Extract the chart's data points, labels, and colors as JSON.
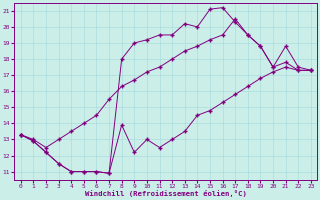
{
  "xlabel": "Windchill (Refroidissement éolien,°C)",
  "xlim": [
    -0.5,
    23.5
  ],
  "ylim": [
    10.5,
    21.5
  ],
  "xticks": [
    0,
    1,
    2,
    3,
    4,
    5,
    6,
    7,
    8,
    9,
    10,
    11,
    12,
    13,
    14,
    15,
    16,
    17,
    18,
    19,
    20,
    21,
    22,
    23
  ],
  "yticks": [
    11,
    12,
    13,
    14,
    15,
    16,
    17,
    18,
    19,
    20,
    21
  ],
  "bg_color": "#cceee8",
  "grid_color": "#aadddd",
  "line_color": "#800080",
  "line1_x": [
    0,
    1,
    2,
    3,
    4,
    5,
    6,
    7,
    8,
    9,
    10,
    11,
    12,
    13,
    14,
    15,
    16,
    17,
    18,
    19,
    20,
    21,
    22,
    23
  ],
  "line1_y": [
    13.3,
    12.9,
    12.2,
    11.5,
    11.0,
    11.0,
    11.0,
    10.9,
    13.9,
    12.2,
    13.0,
    12.5,
    13.0,
    13.5,
    14.5,
    14.8,
    15.3,
    15.8,
    16.3,
    16.8,
    17.2,
    17.5,
    17.3,
    17.3
  ],
  "line2_x": [
    0,
    1,
    2,
    3,
    4,
    5,
    6,
    7,
    8,
    9,
    10,
    11,
    12,
    13,
    14,
    15,
    16,
    17,
    18,
    19,
    20,
    21,
    22,
    23
  ],
  "line2_y": [
    13.3,
    12.9,
    12.2,
    11.5,
    11.0,
    11.0,
    11.0,
    10.9,
    18.0,
    19.0,
    19.2,
    19.5,
    19.5,
    20.2,
    20.0,
    21.1,
    21.2,
    20.3,
    19.5,
    18.8,
    17.5,
    17.8,
    17.3,
    17.3
  ],
  "line3_x": [
    0,
    1,
    2,
    3,
    4,
    5,
    6,
    7,
    8,
    9,
    10,
    11,
    12,
    13,
    14,
    15,
    16,
    17,
    18,
    19,
    20,
    21,
    22,
    23
  ],
  "line3_y": [
    13.3,
    13.0,
    12.5,
    13.0,
    13.5,
    14.0,
    14.5,
    15.5,
    16.3,
    16.7,
    17.2,
    17.5,
    18.0,
    18.5,
    18.8,
    19.2,
    19.5,
    20.5,
    19.5,
    18.8,
    17.5,
    18.8,
    17.5,
    17.3
  ],
  "marker": "+",
  "marker_size": 3,
  "lw": 0.7,
  "tick_fontsize": 4.5,
  "xlabel_fontsize": 5.2
}
